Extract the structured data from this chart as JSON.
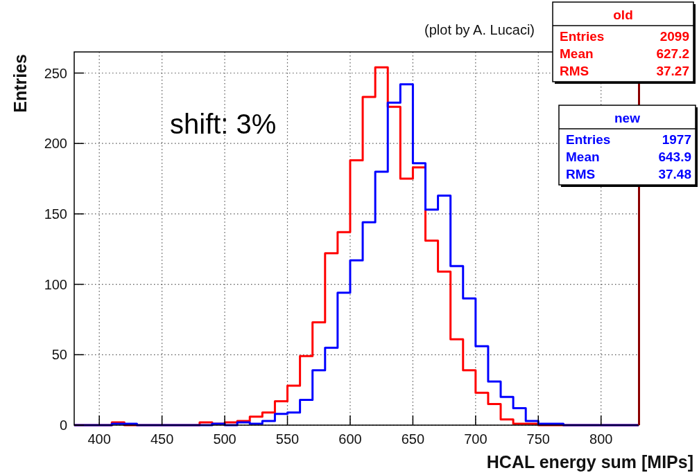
{
  "chart_data": {
    "type": "histogram",
    "xlabel": "HCAL energy sum [MIPs]",
    "ylabel": "Entries",
    "bins": [
      380,
      390,
      400,
      410,
      420,
      430,
      440,
      450,
      460,
      470,
      480,
      490,
      500,
      510,
      520,
      530,
      540,
      550,
      560,
      570,
      580,
      590,
      600,
      610,
      620,
      630,
      640,
      650,
      660,
      670,
      680,
      690,
      700,
      710,
      720,
      730,
      740,
      750,
      760,
      770,
      780,
      790,
      800,
      810,
      820,
      830
    ],
    "series": [
      {
        "name": "old",
        "color": "#ff0000",
        "values": [
          0,
          0,
          0,
          2,
          0,
          0,
          0,
          0,
          0,
          0,
          2,
          1,
          2,
          3,
          6,
          9,
          17,
          28,
          49,
          73,
          122,
          137,
          188,
          233,
          254,
          226,
          175,
          183,
          131,
          109,
          61,
          39,
          23,
          15,
          4,
          1,
          1,
          0,
          0,
          0,
          0,
          0,
          0,
          0,
          0
        ]
      },
      {
        "name": "new",
        "color": "#0000ff",
        "values": [
          0,
          0,
          0,
          1,
          1,
          0,
          0,
          0,
          0,
          0,
          0,
          1,
          0,
          2,
          1,
          3,
          8,
          9,
          18,
          39,
          55,
          94,
          117,
          144,
          180,
          229,
          242,
          186,
          153,
          163,
          113,
          90,
          56,
          31,
          20,
          12,
          3,
          1,
          1,
          0,
          0,
          0,
          0,
          0,
          0
        ]
      }
    ],
    "annotations": [
      "(plot by A. Lucaci)",
      "shift: 3%",
      "Entries 2099",
      "Mean 627.2",
      "RMS 37.27",
      "Entries 1977",
      "Mean 643.9",
      "RMS 37.48"
    ],
    "xlim": [
      380,
      830
    ],
    "ylim": [
      0,
      265
    ],
    "xticks": [
      400,
      450,
      500,
      550,
      600,
      650,
      700,
      750,
      800
    ],
    "yticks": [
      0,
      50,
      100,
      150,
      200,
      250
    ],
    "grid": true,
    "legend": "top right"
  }
}
